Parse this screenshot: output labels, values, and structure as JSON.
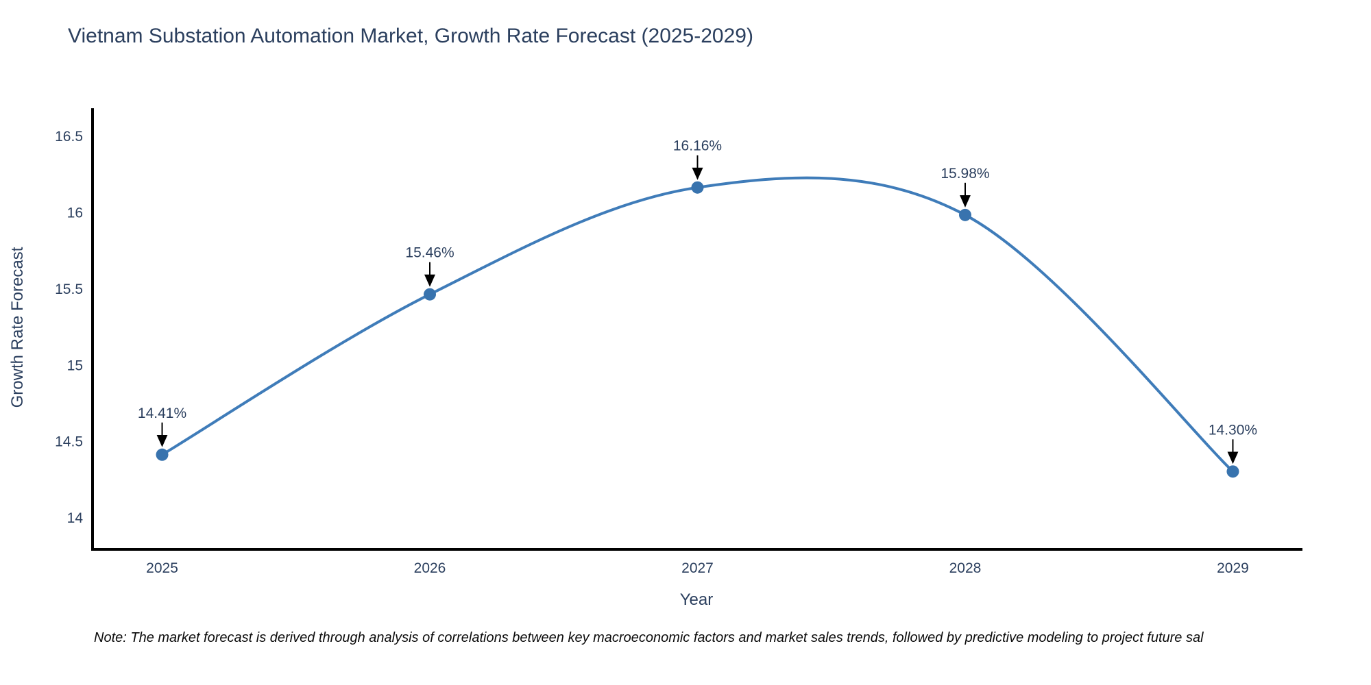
{
  "title": {
    "text": "Vietnam Substation Automation Market, Growth Rate Forecast (2025-2029)"
  },
  "note": {
    "text": "Note: The market forecast is derived through analysis of correlations between key macroeconomic factors and market sales trends, followed by predictive modeling to project future sal"
  },
  "chart_data": {
    "type": "line",
    "line_shape": "spline",
    "title": "Vietnam Substation Automation Market, Growth Rate Forecast (2025-2029)",
    "xlabel": "Year",
    "ylabel": "Growth Rate Forecast",
    "x": [
      2025,
      2026,
      2027,
      2028,
      2029
    ],
    "series": [
      {
        "name": "Growth Rate Forecast",
        "values": [
          14.41,
          15.46,
          16.16,
          15.98,
          14.3
        ]
      }
    ],
    "point_labels": [
      "14.41%",
      "15.46%",
      "16.16%",
      "15.98%",
      "14.30%"
    ],
    "xtick_labels": [
      "2025",
      "2026",
      "2027",
      "2028",
      "2029"
    ],
    "yticks": [
      14,
      14.5,
      15,
      15.5,
      16,
      16.5
    ],
    "ytick_labels": [
      "14",
      "14.5",
      "15",
      "15.5",
      "16",
      "16.5"
    ],
    "xlim": [
      2024.74,
      2029.26
    ],
    "ylim": [
      13.79,
      16.67
    ],
    "grid": false,
    "legend_position": "none",
    "colors": {
      "line": "#3f7cb9",
      "marker": "#3873ae",
      "axis": "#000000",
      "tick_text": "#2b3f5e",
      "annotation_text": "#2b3f5e",
      "annotation_arrow": "#000000"
    }
  }
}
